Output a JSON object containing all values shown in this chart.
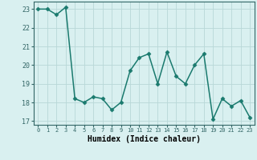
{
  "x": [
    0,
    1,
    2,
    3,
    4,
    5,
    6,
    7,
    8,
    9,
    10,
    11,
    12,
    13,
    14,
    15,
    16,
    17,
    18,
    19,
    20,
    21,
    22,
    23
  ],
  "y": [
    23.0,
    23.0,
    22.7,
    23.1,
    18.2,
    18.0,
    18.3,
    18.2,
    17.6,
    18.0,
    19.7,
    20.4,
    20.6,
    19.0,
    20.7,
    19.4,
    19.0,
    20.0,
    20.6,
    17.1,
    18.2,
    17.8,
    18.1,
    17.2
  ],
  "line_color": "#1a7a6e",
  "marker": "D",
  "marker_size": 2.5,
  "bg_color": "#d9f0f0",
  "grid_color": "#b8d8d8",
  "xlabel": "Humidex (Indice chaleur)",
  "xlim": [
    -0.5,
    23.5
  ],
  "ylim": [
    16.8,
    23.4
  ],
  "yticks": [
    17,
    18,
    19,
    20,
    21,
    22,
    23
  ],
  "xticks": [
    0,
    1,
    2,
    3,
    4,
    5,
    6,
    7,
    8,
    9,
    10,
    11,
    12,
    13,
    14,
    15,
    16,
    17,
    18,
    19,
    20,
    21,
    22,
    23
  ],
  "xtick_fontsize": 5.0,
  "ytick_fontsize": 6.0,
  "xlabel_fontsize": 7.0,
  "linewidth": 1.1,
  "spine_color": "#336666"
}
